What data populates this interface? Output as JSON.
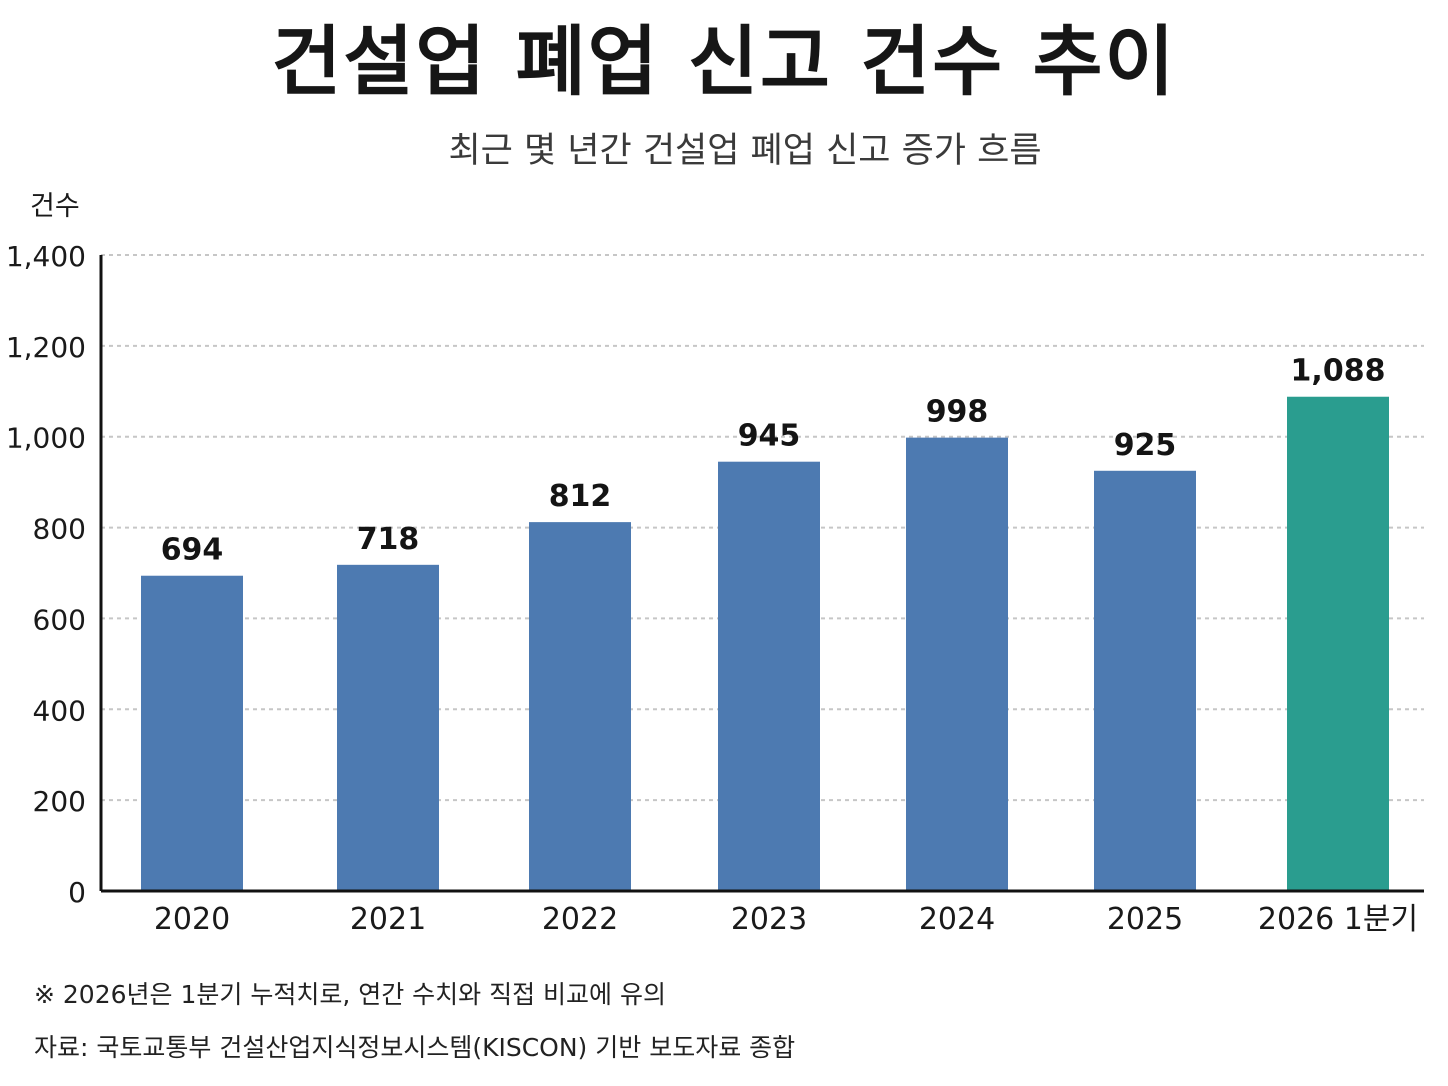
{
  "page": {
    "title": "건설업 폐업 신고 건수 추이",
    "subtitle": "최근 몇 년간 건설업 폐업 신고 증가 흐름",
    "note": "※ 2026년은 1분기 누적치로, 연간 수치와 직접 비교에 유의",
    "source": "자료: 국토교통부 건설산업지식정보시스템(KISCON) 기반 보도자료 종합"
  },
  "chart_data": {
    "type": "bar",
    "title": "건설업 폐업 신고 건수 추이",
    "subtitle": "최근 몇 년간 건설업 폐업 신고 증가 흐름",
    "xlabel": "",
    "ylabel": "건수",
    "categories": [
      "2020",
      "2021",
      "2022",
      "2023",
      "2024",
      "2025",
      "2026 1분기"
    ],
    "values": [
      694,
      718,
      812,
      945,
      998,
      925,
      1088
    ],
    "value_labels": [
      "694",
      "718",
      "812",
      "945",
      "998",
      "925",
      "1,088"
    ],
    "ylim": [
      0,
      1400
    ],
    "yticks": [
      0,
      200,
      400,
      600,
      800,
      1000,
      1200,
      1400
    ],
    "ytick_labels": [
      "0",
      "200",
      "400",
      "600",
      "800",
      "1,000",
      "1,200",
      "1,400"
    ],
    "grid": true,
    "colors": {
      "default_bar": "#4d7ab1",
      "highlight_bar": "#2a9d8f",
      "highlight_category": "2026 1분기",
      "grid": "#c6c6c6",
      "axis": "#111111"
    }
  }
}
